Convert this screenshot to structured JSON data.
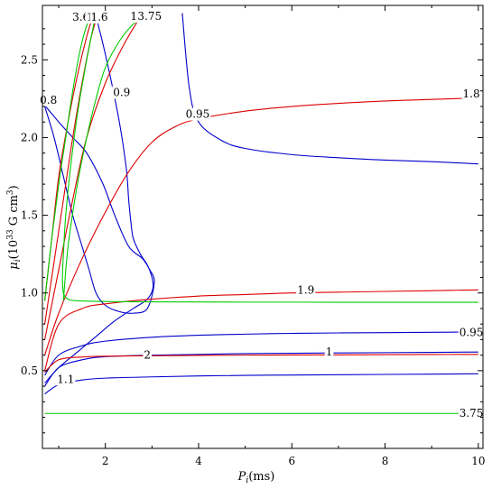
{
  "chart_data": {
    "type": "line",
    "xlabel": "P",
    "xlabel_sub": "i",
    "xlabel_unit": "(ms)",
    "ylabel": "μ",
    "ylabel_sub": "i",
    "ylabel_unit_pre": "(10",
    "ylabel_unit_exp": "33",
    "ylabel_unit_post": " G cm",
    "ylabel_unit_exp2": "3",
    "ylabel_unit_close": ")",
    "xlim": [
      0.65,
      10.1
    ],
    "ylim": [
      0.0,
      2.85
    ],
    "xticks": [
      2,
      4,
      6,
      8,
      10
    ],
    "yticks": [
      0.5,
      1.0,
      1.5,
      2.0,
      2.5
    ],
    "ytick_labels": [
      "0.5",
      "1.0",
      "1.5",
      "2.0",
      "2.5"
    ],
    "colors": {
      "blue": "#0000cc",
      "red": "#dd0000",
      "green": "#00cc00"
    },
    "series": [
      {
        "color": "blue",
        "x": [
          3.65,
          3.8,
          4.0,
          4.5,
          5.0,
          6.0,
          7.0,
          8.0,
          9.0,
          10.0
        ],
        "y": [
          2.8,
          2.32,
          2.1,
          1.98,
          1.93,
          1.89,
          1.87,
          1.855,
          1.845,
          1.83
        ]
      },
      {
        "color": "blue",
        "x": [
          0.7,
          0.9,
          1.1,
          1.3,
          1.5,
          1.65,
          1.8,
          2.0,
          2.3,
          2.6,
          2.9,
          3.05,
          2.95,
          2.8,
          2.5,
          2.2,
          1.95,
          1.6,
          1.3,
          1.0,
          0.72
        ],
        "y": [
          2.2,
          2.0,
          1.75,
          1.5,
          1.3,
          1.15,
          1.0,
          0.92,
          0.88,
          0.87,
          0.9,
          1.07,
          1.15,
          1.22,
          1.3,
          1.5,
          1.7,
          1.9,
          2.0,
          2.1,
          2.2
        ]
      },
      {
        "color": "blue",
        "x": [
          1.8,
          1.95,
          2.1,
          2.3,
          2.45,
          2.5,
          2.55,
          2.6,
          2.75,
          2.9,
          3.0,
          3.02,
          2.9,
          2.6,
          2.2,
          1.8,
          1.4,
          1.0,
          0.7
        ],
        "y": [
          2.78,
          2.6,
          2.4,
          2.1,
          1.8,
          1.6,
          1.45,
          1.35,
          1.25,
          1.18,
          1.1,
          1.03,
          0.96,
          0.9,
          0.82,
          0.72,
          0.62,
          0.52,
          0.42
        ]
      },
      {
        "color": "blue",
        "x": [
          0.7,
          1.0,
          1.5,
          2.0,
          3.0,
          4.0,
          5.0,
          6.0,
          7.0,
          8.0,
          9.0,
          10.0
        ],
        "y": [
          0.47,
          0.6,
          0.66,
          0.69,
          0.715,
          0.728,
          0.735,
          0.74,
          0.743,
          0.745,
          0.747,
          0.749
        ]
      },
      {
        "color": "blue",
        "x": [
          0.7,
          1.0,
          1.5,
          2.0,
          3.0,
          4.0,
          5.0,
          6.0,
          7.0,
          8.0,
          9.0,
          10.0
        ],
        "y": [
          0.4,
          0.52,
          0.57,
          0.59,
          0.6,
          0.605,
          0.61,
          0.612,
          0.614,
          0.616,
          0.618,
          0.62
        ]
      },
      {
        "color": "blue",
        "x": [
          0.7,
          1.0,
          1.5,
          2.0,
          3.0,
          4.0,
          5.0,
          6.0,
          7.0,
          8.0,
          9.0,
          10.0
        ],
        "y": [
          0.35,
          0.41,
          0.44,
          0.452,
          0.46,
          0.466,
          0.47,
          0.472,
          0.474,
          0.476,
          0.478,
          0.48
        ]
      },
      {
        "color": "red",
        "x": [
          0.7,
          1.0,
          1.5,
          2.0,
          2.5,
          3.0,
          3.5,
          4.0,
          5.0,
          6.0,
          7.0,
          8.0,
          9.0,
          10.0
        ],
        "y": [
          0.6,
          0.87,
          1.22,
          1.52,
          1.78,
          1.97,
          2.07,
          2.12,
          2.17,
          2.2,
          2.22,
          2.235,
          2.245,
          2.255
        ]
      },
      {
        "color": "red",
        "x": [
          0.7,
          1.0,
          1.3,
          1.6,
          2.0,
          2.4,
          2.8
        ],
        "y": [
          0.7,
          1.15,
          1.6,
          2.0,
          2.35,
          2.6,
          2.8
        ]
      },
      {
        "color": "red",
        "x": [
          0.7,
          0.9,
          1.1,
          1.3,
          1.5,
          1.7,
          1.85
        ],
        "y": [
          0.8,
          1.2,
          1.6,
          2.0,
          2.35,
          2.65,
          2.8
        ]
      },
      {
        "color": "red",
        "x": [
          0.7,
          0.85,
          1.0,
          1.2,
          1.4,
          1.6,
          1.75
        ],
        "y": [
          0.95,
          1.35,
          1.75,
          2.1,
          2.4,
          2.65,
          2.8
        ]
      },
      {
        "color": "red",
        "x": [
          0.7,
          1.0,
          1.5,
          2.0,
          3.0,
          4.0,
          5.0,
          6.0,
          7.0,
          8.0,
          9.0,
          10.0
        ],
        "y": [
          0.5,
          0.8,
          0.9,
          0.93,
          0.96,
          0.98,
          0.99,
          1.0,
          1.005,
          1.01,
          1.015,
          1.02
        ]
      },
      {
        "color": "red",
        "x": [
          0.7,
          1.0,
          1.5,
          2.0,
          3.0,
          4.0,
          5.0,
          6.0,
          7.0,
          8.0,
          9.0,
          10.0
        ],
        "y": [
          0.49,
          0.57,
          0.588,
          0.593,
          0.596,
          0.598,
          0.6,
          0.601,
          0.602,
          0.603,
          0.604,
          0.605
        ]
      },
      {
        "color": "green",
        "x": [
          1.8,
          1.6,
          1.4,
          1.25,
          1.15,
          1.1,
          1.08,
          1.1,
          1.2,
          1.4,
          2.0,
          3.0,
          4.0,
          5.0,
          6.0,
          7.0,
          8.0,
          9.0,
          10.0
        ],
        "y": [
          2.8,
          2.5,
          2.15,
          1.8,
          1.5,
          1.25,
          1.1,
          1.0,
          0.96,
          0.95,
          0.945,
          0.943,
          0.942,
          0.941,
          0.941,
          0.94,
          0.94,
          0.94,
          0.94
        ]
      },
      {
        "color": "green",
        "x": [
          0.7,
          0.85,
          1.0,
          1.15,
          1.3,
          1.45,
          1.6,
          1.75
        ],
        "y": [
          0.95,
          1.35,
          1.7,
          2.0,
          2.3,
          2.55,
          2.72,
          2.8
        ]
      },
      {
        "color": "green",
        "x": [
          1.1,
          1.2,
          1.4,
          1.6,
          1.8,
          2.0,
          2.3,
          2.6,
          2.9
        ],
        "y": [
          0.95,
          1.3,
          1.7,
          2.0,
          2.25,
          2.45,
          2.62,
          2.73,
          2.8
        ]
      },
      {
        "color": "green",
        "x": [
          0.7,
          2.0,
          4.0,
          6.0,
          8.0,
          10.0
        ],
        "y": [
          0.225,
          0.225,
          0.225,
          0.225,
          0.225,
          0.225
        ]
      }
    ],
    "annotations": [
      {
        "text": "3.65",
        "x": 1.55,
        "y": 2.775
      },
      {
        "text": "1.8",
        "x": 1.78,
        "y": 2.775
      },
      {
        "text": "1.6",
        "x": 1.87,
        "y": 2.775
      },
      {
        "text": "1.8",
        "x": 2.72,
        "y": 2.78
      },
      {
        "text": "3.75",
        "x": 2.95,
        "y": 2.78
      },
      {
        "text": "0.8",
        "x": 0.78,
        "y": 2.24
      },
      {
        "text": "0.9",
        "x": 2.35,
        "y": 2.29
      },
      {
        "text": "0.95",
        "x": 3.98,
        "y": 2.15
      },
      {
        "text": "1.8",
        "x": 9.85,
        "y": 2.28
      },
      {
        "text": "1.9",
        "x": 6.3,
        "y": 1.02
      },
      {
        "text": "0.95",
        "x": 9.85,
        "y": 0.745
      },
      {
        "text": "1",
        "x": 6.8,
        "y": 0.62
      },
      {
        "text": "2",
        "x": 2.9,
        "y": 0.6
      },
      {
        "text": "1.1",
        "x": 1.15,
        "y": 0.445
      },
      {
        "text": "3.75",
        "x": 9.85,
        "y": 0.225
      }
    ]
  }
}
